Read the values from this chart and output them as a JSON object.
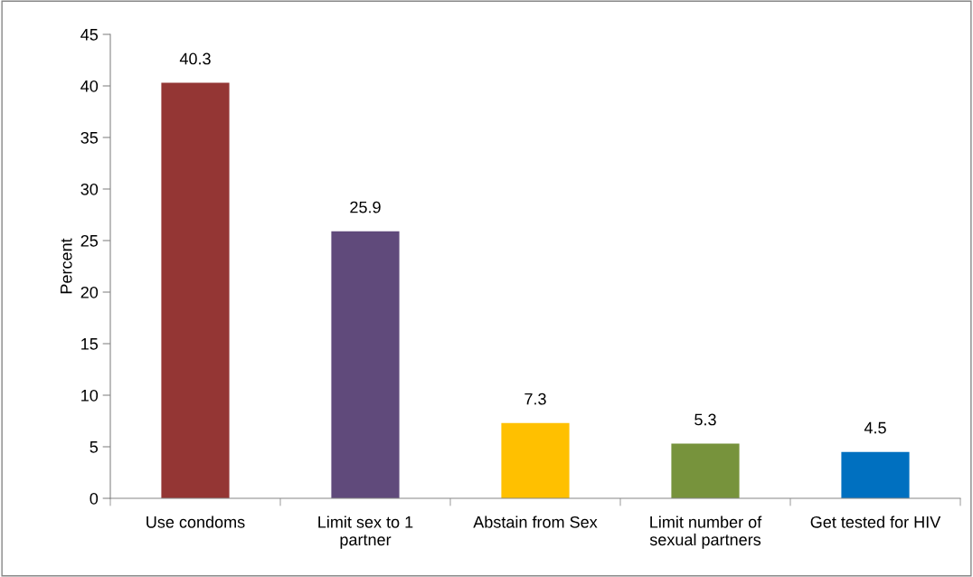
{
  "chart_data": {
    "type": "bar",
    "ylabel": "Percent",
    "categories": [
      "Use condoms",
      "Limit sex to 1 partner",
      "Abstain from Sex",
      "Limit number of sexual partners",
      "Get tested for HIV"
    ],
    "values": [
      40.3,
      25.9,
      7.3,
      5.3,
      4.5
    ],
    "colors": [
      "#943634",
      "#604a7b",
      "#ffc000",
      "#77933c",
      "#0070c0"
    ],
    "ylim": [
      0,
      45
    ],
    "yticks": [
      0,
      5,
      10,
      15,
      20,
      25,
      30,
      35,
      40,
      45
    ],
    "data_labels": true,
    "grid": false,
    "legend": false
  }
}
